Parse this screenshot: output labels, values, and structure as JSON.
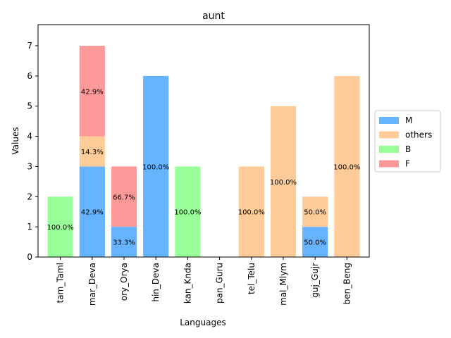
{
  "chart_data": {
    "type": "bar",
    "stacked": true,
    "title": "aunt",
    "xlabel": "Languages",
    "ylabel": "Values",
    "ylim": [
      0,
      7.7
    ],
    "yticks": [
      0,
      1,
      2,
      3,
      4,
      5,
      6,
      7
    ],
    "categories": [
      "tam_Taml",
      "mar_Deva",
      "ory_Orya",
      "hin_Deva",
      "kan_Knda",
      "pan_Guru",
      "tel_Telu",
      "mal_Mlym",
      "guj_Gujr",
      "ben_Beng"
    ],
    "series": [
      {
        "name": "M",
        "color": "#66b3ff",
        "values": [
          0,
          3,
          1,
          6,
          0,
          0,
          0,
          0,
          1,
          0
        ]
      },
      {
        "name": "others",
        "color": "#ffcc99",
        "values": [
          0,
          1,
          0,
          0,
          0,
          0,
          3,
          5,
          1,
          6
        ]
      },
      {
        "name": "B",
        "color": "#99ff99",
        "values": [
          2,
          0,
          0,
          0,
          3,
          0,
          0,
          0,
          0,
          0
        ]
      },
      {
        "name": "F",
        "color": "#ff9999",
        "values": [
          0,
          3,
          2,
          0,
          0,
          0,
          0,
          0,
          0,
          0
        ]
      }
    ],
    "data_labels": [
      {
        "category": 0,
        "series": 2,
        "text": "100.0%"
      },
      {
        "category": 1,
        "series": 0,
        "text": "42.9%"
      },
      {
        "category": 1,
        "series": 1,
        "text": "14.3%"
      },
      {
        "category": 1,
        "series": 3,
        "text": "42.9%"
      },
      {
        "category": 2,
        "series": 0,
        "text": "33.3%"
      },
      {
        "category": 2,
        "series": 3,
        "text": "66.7%"
      },
      {
        "category": 3,
        "series": 0,
        "text": "100.0%"
      },
      {
        "category": 4,
        "series": 2,
        "text": "100.0%"
      },
      {
        "category": 6,
        "series": 1,
        "text": "100.0%"
      },
      {
        "category": 7,
        "series": 1,
        "text": "100.0%"
      },
      {
        "category": 8,
        "series": 0,
        "text": "50.0%"
      },
      {
        "category": 8,
        "series": 1,
        "text": "50.0%"
      },
      {
        "category": 9,
        "series": 1,
        "text": "100.0%"
      }
    ],
    "legend": {
      "placement": "center-right",
      "entries": [
        "M",
        "others",
        "B",
        "F"
      ]
    },
    "grid": false
  }
}
